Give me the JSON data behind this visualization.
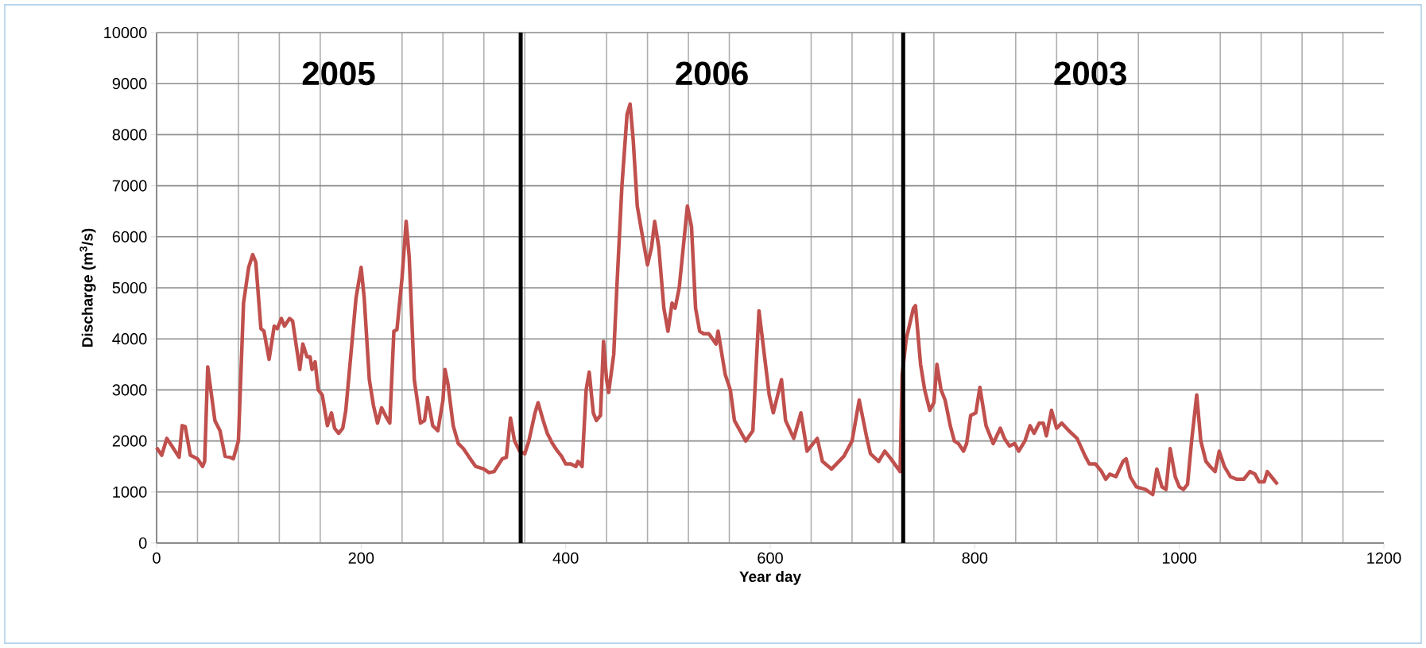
{
  "chart_data": {
    "type": "line",
    "xlabel": "Year day",
    "ylabel": "Discharge (m$^{3}$/s)",
    "xlim": [
      0,
      1200
    ],
    "xticks": [
      0,
      200,
      400,
      600,
      800,
      1000,
      1200
    ],
    "ylim": [
      0,
      10000
    ],
    "yticks": [
      0,
      1000,
      2000,
      3000,
      4000,
      5000,
      6000,
      7000,
      8000,
      9000,
      10000
    ],
    "grid": true,
    "marker": "none",
    "line_style": "solid",
    "series": [
      {
        "color": "#c0504d",
        "x": [
          0,
          5,
          10,
          15,
          22,
          25,
          28,
          33,
          40,
          45,
          47,
          50,
          53,
          57,
          62,
          67,
          72,
          75,
          80,
          85,
          90,
          94,
          97,
          102,
          105,
          110,
          115,
          118,
          122,
          125,
          130,
          133,
          140,
          143,
          147,
          150,
          152,
          155,
          158,
          162,
          167,
          171,
          174,
          178,
          182,
          185,
          190,
          195,
          200,
          203,
          208,
          212,
          216,
          220,
          225,
          228,
          232,
          235,
          240,
          244,
          247,
          252,
          258,
          262,
          265,
          270,
          275,
          280,
          282,
          285,
          290,
          295,
          300,
          305,
          312,
          320,
          325,
          330,
          338,
          342,
          346,
          350,
          355,
          360,
          364,
          370,
          373,
          378,
          382,
          387,
          392,
          396,
          400,
          405,
          410,
          412,
          416,
          420,
          423,
          427,
          430,
          434,
          437,
          440,
          442,
          447,
          450,
          455,
          460,
          463,
          466,
          470,
          476,
          480,
          484,
          487,
          491,
          496,
          500,
          504,
          507,
          511,
          515,
          519,
          523,
          527,
          531,
          535,
          540,
          547,
          549,
          556,
          561,
          565,
          576,
          583,
          589,
          599,
          603,
          611,
          615,
          623,
          630,
          636,
          646,
          651,
          660,
          672,
          680,
          687,
          694,
          698,
          706,
          712,
          718,
          727,
          729,
          733,
          740,
          742,
          747,
          751,
          756,
          760,
          763,
          767,
          771,
          776,
          780,
          784,
          789,
          792,
          796,
          801,
          805,
          811,
          818,
          825,
          829,
          834,
          839,
          843,
          849,
          854,
          858,
          863,
          867,
          870,
          875,
          880,
          885,
          892,
          900,
          908,
          912,
          918,
          924,
          928,
          932,
          938,
          945,
          948,
          952,
          958,
          967,
          974,
          978,
          983,
          987,
          991,
          996,
          1000,
          1004,
          1008,
          1012,
          1017,
          1021,
          1026,
          1030,
          1035,
          1039,
          1044,
          1050,
          1056,
          1063,
          1069,
          1074,
          1078,
          1083,
          1086,
          1092,
          1096
        ],
        "values": [
          1870,
          1720,
          2050,
          1900,
          1680,
          2300,
          2280,
          1720,
          1650,
          1500,
          1600,
          3450,
          3000,
          2400,
          2200,
          1700,
          1680,
          1650,
          2000,
          4700,
          5400,
          5650,
          5500,
          4200,
          4150,
          3600,
          4250,
          4200,
          4400,
          4250,
          4400,
          4350,
          3400,
          3900,
          3650,
          3650,
          3400,
          3550,
          3000,
          2900,
          2300,
          2550,
          2250,
          2150,
          2250,
          2600,
          3700,
          4800,
          5400,
          4800,
          3200,
          2700,
          2350,
          2650,
          2450,
          2350,
          4150,
          4180,
          5200,
          6300,
          5600,
          3200,
          2350,
          2400,
          2850,
          2300,
          2200,
          2800,
          3400,
          3100,
          2300,
          1950,
          1850,
          1700,
          1500,
          1450,
          1380,
          1400,
          1650,
          1680,
          2450,
          2000,
          1800,
          1750,
          2000,
          2550,
          2750,
          2400,
          2150,
          1950,
          1800,
          1700,
          1550,
          1550,
          1500,
          1600,
          1500,
          3000,
          3350,
          2550,
          2400,
          2500,
          3950,
          3200,
          2950,
          3700,
          5000,
          7000,
          8400,
          8600,
          7900,
          6600,
          5900,
          5450,
          5800,
          6300,
          5800,
          4600,
          4150,
          4700,
          4600,
          5000,
          5800,
          6600,
          6200,
          4600,
          4150,
          4100,
          4100,
          3900,
          4150,
          3300,
          3000,
          2400,
          2000,
          2200,
          4550,
          2900,
          2550,
          3200,
          2400,
          2050,
          2550,
          1800,
          2050,
          1600,
          1450,
          1700,
          2000,
          2800,
          2100,
          1750,
          1600,
          1800,
          1650,
          1400,
          3300,
          4000,
          4600,
          4650,
          3500,
          3000,
          2600,
          2750,
          3500,
          3000,
          2800,
          2300,
          2000,
          1950,
          1800,
          1950,
          2500,
          2550,
          3050,
          2300,
          1950,
          2250,
          2050,
          1900,
          1950,
          1800,
          2000,
          2300,
          2150,
          2350,
          2350,
          2100,
          2600,
          2250,
          2350,
          2200,
          2050,
          1700,
          1550,
          1550,
          1400,
          1250,
          1350,
          1300,
          1600,
          1650,
          1300,
          1100,
          1050,
          950,
          1450,
          1100,
          1050,
          1850,
          1300,
          1100,
          1050,
          1150,
          2000,
          2900,
          2000,
          1600,
          1500,
          1400,
          1800,
          1500,
          1300,
          1250,
          1250,
          1400,
          1350,
          1200,
          1200,
          1400,
          1250,
          1150
        ]
      }
    ],
    "ref_lines": [
      {
        "axis": "x",
        "value": 356,
        "color": "#000000"
      },
      {
        "axis": "x",
        "value": 730,
        "color": "#000000"
      }
    ],
    "annotations": [
      "2005",
      "2006",
      "2003"
    ]
  }
}
